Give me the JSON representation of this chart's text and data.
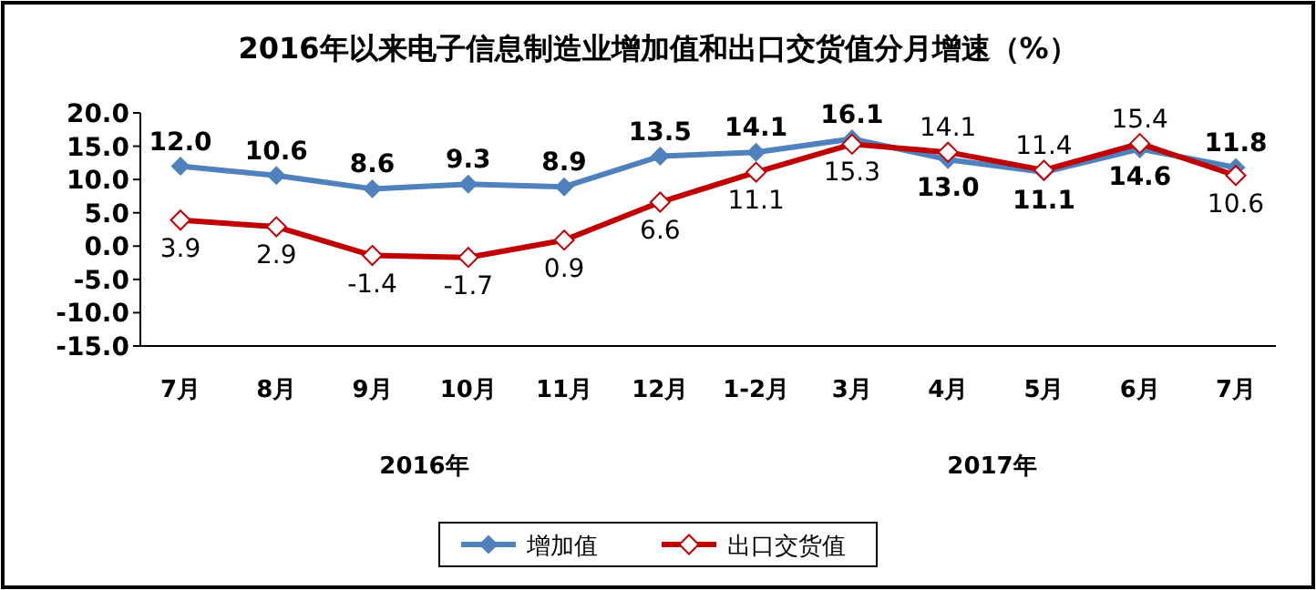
{
  "chart_data": {
    "type": "line",
    "title": "2016年以来电子信息制造业增加值和出口交货值分月增速（%）",
    "categories": [
      "7月",
      "8月",
      "9月",
      "10月",
      "11月",
      "12月",
      "1-2月",
      "3月",
      "4月",
      "5月",
      "6月",
      "7月"
    ],
    "series": [
      {
        "name": "增加值",
        "color": "#4f81bd",
        "values": [
          12.0,
          10.6,
          8.6,
          9.3,
          8.9,
          13.5,
          14.1,
          16.1,
          13.0,
          11.1,
          14.6,
          11.8
        ],
        "value_labels": [
          "12.0",
          "10.6",
          "8.6",
          "9.3",
          "8.9",
          "13.5",
          "14.1",
          "16.1",
          "13.0",
          "11.1",
          "14.6",
          "11.8"
        ]
      },
      {
        "name": "出口交货值",
        "color": "#c00000",
        "values": [
          3.9,
          2.9,
          -1.4,
          -1.7,
          0.9,
          6.6,
          11.1,
          15.3,
          14.1,
          11.4,
          15.4,
          10.6
        ],
        "value_labels": [
          "3.9",
          "2.9",
          "-1.4",
          "-1.7",
          "0.9",
          "6.6",
          "11.1",
          "15.3",
          "14.1",
          "11.4",
          "15.4",
          "10.6"
        ]
      }
    ],
    "ylim": [
      -15,
      20
    ],
    "yticks": [
      {
        "value": -15,
        "label": "-15.0"
      },
      {
        "value": -10,
        "label": "-10.0"
      },
      {
        "value": -5,
        "label": "-5.0"
      },
      {
        "value": 0,
        "label": "0.0"
      },
      {
        "value": 5,
        "label": "5.0"
      },
      {
        "value": 10,
        "label": "10.0"
      },
      {
        "value": 15,
        "label": "15.0"
      },
      {
        "value": 20,
        "label": "20.0"
      }
    ],
    "annotations": [
      "2016年",
      "2017年"
    ],
    "legend": "bottom",
    "marker": "diamond",
    "line_style": "solid",
    "grid": false
  }
}
